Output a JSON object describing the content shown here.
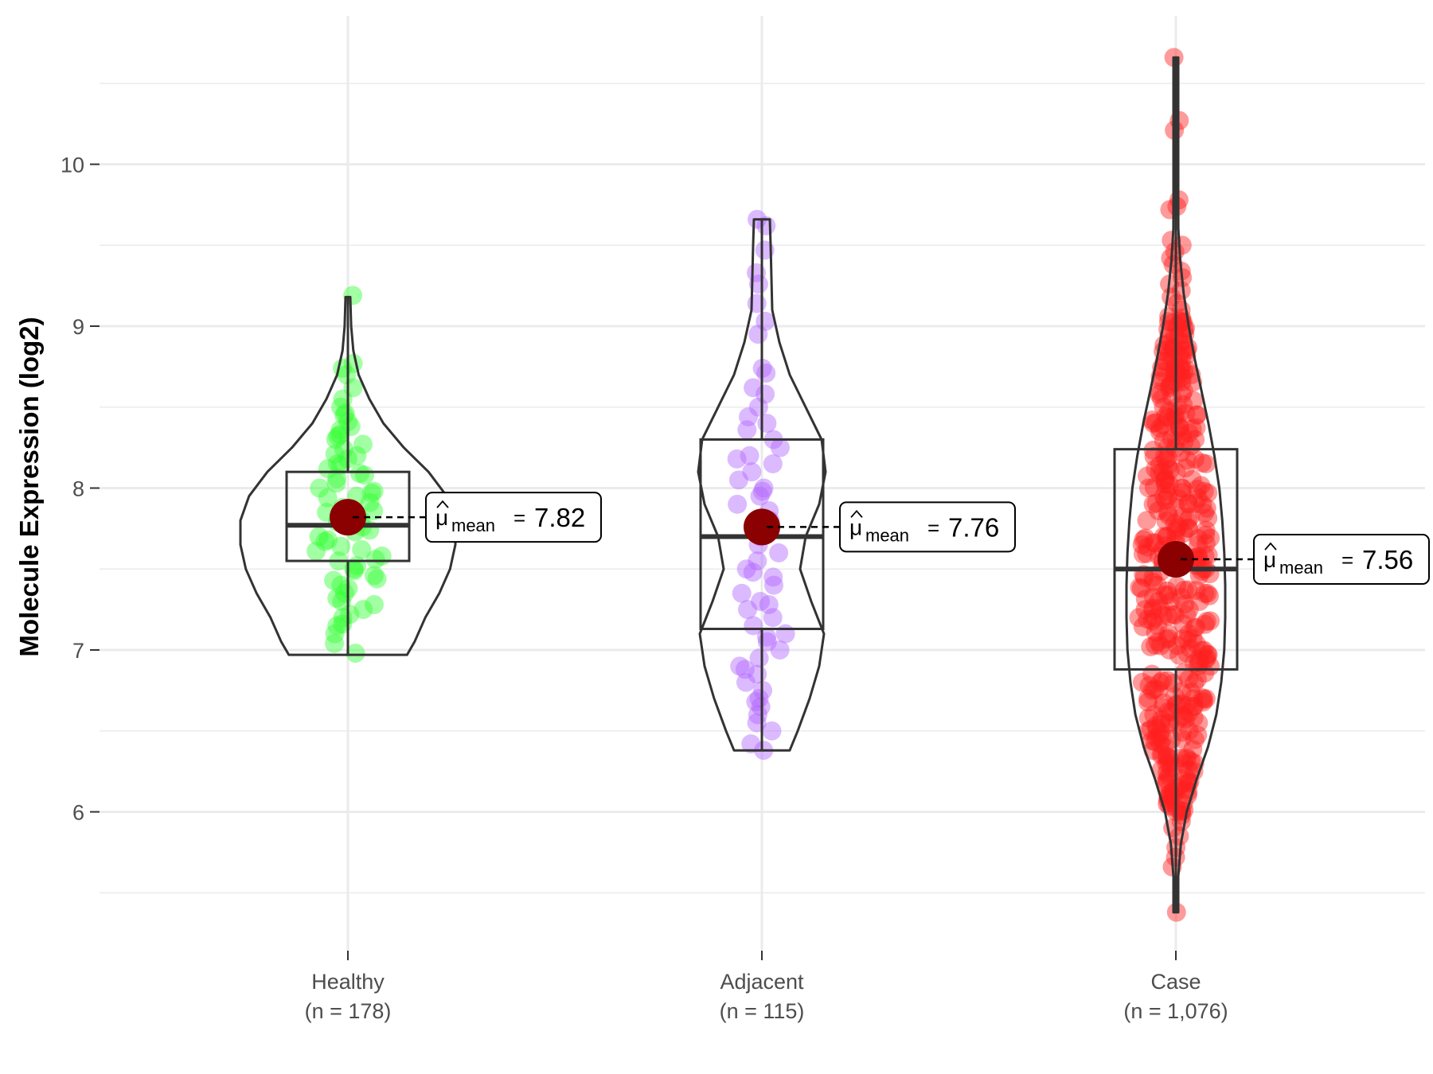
{
  "chart_data": {
    "type": "violin",
    "title": "",
    "xlabel": "",
    "ylabel": "Molecule Expression (log2)",
    "ylim": [
      5.2,
      10.9
    ],
    "yticks": [
      6,
      7,
      8,
      9,
      10
    ],
    "grid": true,
    "groups": [
      {
        "name": "Healthy",
        "n_label": "(n = 178)",
        "color": "#33ff33",
        "box": {
          "q1": 7.55,
          "median": 7.77,
          "q3": 8.1,
          "whisker_low": 6.97,
          "whisker_high": 9.18
        },
        "violin": {
          "min": 6.97,
          "max": 9.18,
          "profile": [
            [
              6.97,
              0.55
            ],
            [
              7.05,
              0.62
            ],
            [
              7.2,
              0.72
            ],
            [
              7.35,
              0.85
            ],
            [
              7.5,
              0.95
            ],
            [
              7.65,
              1.0
            ],
            [
              7.8,
              1.0
            ],
            [
              7.95,
              0.92
            ],
            [
              8.1,
              0.75
            ],
            [
              8.25,
              0.52
            ],
            [
              8.4,
              0.33
            ],
            [
              8.55,
              0.2
            ],
            [
              8.7,
              0.1
            ],
            [
              8.85,
              0.05
            ],
            [
              9.0,
              0.03
            ],
            [
              9.18,
              0.0
            ]
          ]
        },
        "mean": 7.82,
        "mean_label": "7.82",
        "points": [
          9.19,
          8.77,
          8.74,
          8.7,
          8.62,
          8.55,
          8.46,
          8.41,
          8.38,
          8.33,
          8.3,
          8.27,
          8.24,
          8.21,
          8.18,
          8.15,
          8.12,
          8.09,
          8.06,
          8.03,
          8.0,
          7.97,
          7.94,
          7.91,
          7.88,
          7.85,
          7.82,
          7.79,
          7.76,
          7.73,
          7.7,
          7.67,
          7.64,
          7.61,
          7.58,
          7.55,
          7.52,
          7.49,
          7.46,
          7.43,
          7.4,
          7.35,
          7.3,
          7.25,
          7.2,
          7.16,
          7.1,
          7.04,
          6.98,
          8.5,
          8.36,
          8.2,
          8.08,
          7.98,
          7.86,
          7.74,
          7.62,
          7.5,
          7.38,
          7.28,
          7.15,
          8.45,
          8.32,
          8.14,
          7.95,
          7.8,
          7.68,
          7.56,
          7.44,
          7.32,
          7.22
        ]
      },
      {
        "name": "Adjacent",
        "n_label": "(n = 115)",
        "color": "#b266ff",
        "box": {
          "q1": 7.13,
          "median": 7.7,
          "q3": 8.3,
          "whisker_low": 6.38,
          "whisker_high": 9.66
        },
        "violin": {
          "min": 6.38,
          "max": 9.66,
          "profile": [
            [
              6.38,
              0.35
            ],
            [
              6.5,
              0.45
            ],
            [
              6.7,
              0.6
            ],
            [
              6.9,
              0.72
            ],
            [
              7.1,
              0.78
            ],
            [
              7.3,
              0.62
            ],
            [
              7.5,
              0.48
            ],
            [
              7.7,
              0.55
            ],
            [
              7.9,
              0.72
            ],
            [
              8.1,
              0.8
            ],
            [
              8.3,
              0.75
            ],
            [
              8.5,
              0.55
            ],
            [
              8.7,
              0.35
            ],
            [
              8.9,
              0.22
            ],
            [
              9.1,
              0.13
            ],
            [
              9.3,
              0.12
            ],
            [
              9.5,
              0.11
            ],
            [
              9.66,
              0.1
            ]
          ]
        },
        "mean": 7.76,
        "mean_label": "7.76",
        "points": [
          9.66,
          9.62,
          9.47,
          9.33,
          9.26,
          9.14,
          9.03,
          8.95,
          8.74,
          8.71,
          8.62,
          8.5,
          8.44,
          8.4,
          8.36,
          8.3,
          8.25,
          8.2,
          8.15,
          8.1,
          8.05,
          8.0,
          7.95,
          7.9,
          7.86,
          7.8,
          7.75,
          7.7,
          7.65,
          7.6,
          7.55,
          7.5,
          7.45,
          7.4,
          7.35,
          7.3,
          7.25,
          7.2,
          7.15,
          7.1,
          7.05,
          7.0,
          6.95,
          6.9,
          6.85,
          6.8,
          6.75,
          6.7,
          6.65,
          6.6,
          6.55,
          6.5,
          6.42,
          6.38,
          8.58,
          8.18,
          7.98,
          7.48,
          7.28,
          7.08,
          6.88,
          6.68
        ]
      },
      {
        "name": "Case",
        "n_label": "(n = 1,076)",
        "color": "#ff2020",
        "box": {
          "q1": 6.88,
          "median": 7.5,
          "q3": 8.24,
          "whisker_low": 5.38,
          "whisker_high": 10.66
        },
        "violin": {
          "min": 5.38,
          "max": 10.66,
          "profile": [
            [
              5.38,
              0.0
            ],
            [
              5.6,
              0.04
            ],
            [
              5.8,
              0.1
            ],
            [
              6.0,
              0.22
            ],
            [
              6.2,
              0.42
            ],
            [
              6.4,
              0.65
            ],
            [
              6.6,
              0.82
            ],
            [
              6.8,
              0.92
            ],
            [
              7.0,
              0.98
            ],
            [
              7.2,
              1.0
            ],
            [
              7.4,
              1.0
            ],
            [
              7.6,
              0.98
            ],
            [
              7.8,
              0.94
            ],
            [
              8.0,
              0.88
            ],
            [
              8.2,
              0.78
            ],
            [
              8.4,
              0.66
            ],
            [
              8.6,
              0.52
            ],
            [
              8.8,
              0.38
            ],
            [
              9.0,
              0.26
            ],
            [
              9.2,
              0.16
            ],
            [
              9.4,
              0.09
            ],
            [
              9.6,
              0.05
            ],
            [
              9.8,
              0.03
            ],
            [
              10.0,
              0.02
            ],
            [
              10.3,
              0.01
            ],
            [
              10.66,
              0.0
            ]
          ]
        },
        "mean": 7.56,
        "mean_label": "7.56",
        "points": [
          10.66,
          10.27,
          10.21,
          9.78,
          9.74,
          9.72,
          9.53,
          9.5,
          9.46,
          9.42,
          9.38,
          9.34,
          9.3,
          9.26,
          9.22,
          9.18,
          9.14,
          9.1,
          9.06,
          9.02,
          8.98,
          8.94,
          8.9,
          8.86,
          8.82,
          8.78,
          8.74,
          8.7,
          8.66,
          8.62,
          8.58,
          8.54,
          8.5,
          8.46,
          8.42,
          8.38,
          8.34,
          8.3,
          8.26,
          8.22,
          8.18,
          8.14,
          8.1,
          8.06,
          8.02,
          7.98,
          7.94,
          7.9,
          7.86,
          7.82,
          7.78,
          7.74,
          7.7,
          7.66,
          7.62,
          7.58,
          7.54,
          7.5,
          7.46,
          7.42,
          7.38,
          7.34,
          7.3,
          7.26,
          7.22,
          7.18,
          7.14,
          7.1,
          7.06,
          7.02,
          6.98,
          6.94,
          6.9,
          6.86,
          6.82,
          6.78,
          6.74,
          6.7,
          6.66,
          6.62,
          6.58,
          6.54,
          6.5,
          6.46,
          6.42,
          6.38,
          6.34,
          6.3,
          6.26,
          6.22,
          6.18,
          6.14,
          6.1,
          6.06,
          6.02,
          5.98,
          5.94,
          5.9,
          5.85,
          5.78,
          5.72,
          5.66,
          5.38,
          9.0,
          8.9,
          8.8,
          8.7,
          8.6,
          8.5,
          8.4,
          8.3,
          8.2,
          8.1,
          8.0,
          7.9,
          7.8,
          7.7,
          7.6,
          7.5,
          7.4,
          7.3,
          7.2,
          7.1,
          7.0,
          6.9,
          6.8,
          6.7,
          6.6,
          6.5,
          6.4,
          6.3,
          6.2,
          6.1,
          6.0,
          8.95,
          8.75,
          8.55,
          8.35,
          8.15,
          7.95,
          7.75,
          7.55,
          7.35,
          7.15,
          6.95,
          6.75,
          6.55,
          6.35,
          6.15,
          8.85,
          8.65,
          8.45,
          8.25,
          8.05,
          7.85,
          7.65,
          7.45,
          7.25,
          7.05,
          6.85,
          6.65,
          6.45,
          6.25,
          6.05
        ]
      }
    ],
    "mean_symbol": "μ",
    "mean_subscript": "mean",
    "mean_equals": "="
  }
}
